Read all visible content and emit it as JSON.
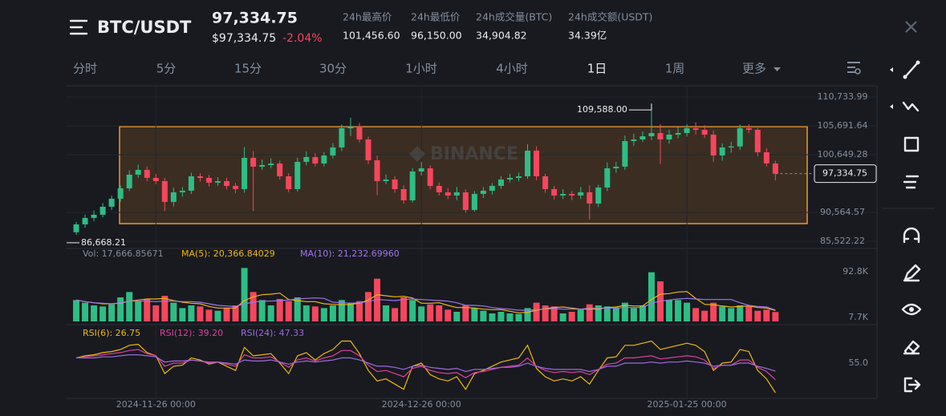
{
  "header": {
    "symbol": "BTC/USDT",
    "price": "97,334.75",
    "price_usd": "$97,334.75",
    "change": "-2.04%",
    "stats": [
      {
        "label": "24h最高价",
        "value": "101,456.60"
      },
      {
        "label": "24h最低价",
        "value": "96,150.00"
      },
      {
        "label": "24h成交量(BTC)",
        "value": "34,904.82"
      },
      {
        "label": "24h成交额(USDT)",
        "value": "34.39亿"
      }
    ]
  },
  "tabs": [
    "分时",
    "5分",
    "15分",
    "30分",
    "1小时",
    "4小时",
    "1日",
    "1周",
    "更多"
  ],
  "active_tab": 6,
  "chart_data": [
    {
      "type": "candlestick",
      "watermark": "BINANCE",
      "up_color": "#2ebd85",
      "down_color": "#f6465d",
      "xlim": [
        -1.18,
        90.39
      ],
      "xticks": [
        {
          "value": 9,
          "label": "2024-11-26 00:00"
        },
        {
          "value": 39,
          "label": "2024-12-26 00:00"
        },
        {
          "value": 69,
          "label": "2025-01-25 00:00"
        }
      ],
      "ylim": [
        84261,
        112555
      ],
      "yticks": [
        {
          "value": 110733.99,
          "label": "110,733.99"
        },
        {
          "value": 105691.64,
          "label": "105,691.64"
        },
        {
          "value": 100649.28,
          "label": "100,649.28"
        },
        {
          "value": 90564.57,
          "label": "90,564.57"
        },
        {
          "value": 85522.22,
          "label": "85,522.22"
        }
      ],
      "annotations": [
        {
          "index": 65,
          "value": 109588,
          "label": "109,588.00"
        },
        {
          "index": 0,
          "value": 86668.21,
          "label": "86,668.21"
        },
        {
          "index": 79,
          "value": 97334.75,
          "label": "97,334.75"
        }
      ],
      "candles": [
        [
          87100,
          88900,
          86668.21,
          88474
        ],
        [
          88474,
          90200,
          87900,
          89594
        ],
        [
          89594,
          90900,
          89000,
          90154
        ],
        [
          90154,
          92200,
          89700,
          91554
        ],
        [
          91554,
          93500,
          91000,
          92954
        ],
        [
          92954,
          95300,
          92400,
          94774
        ],
        [
          94774,
          97900,
          94300,
          97154
        ],
        [
          97154,
          98900,
          96600,
          97994
        ],
        [
          97994,
          98600,
          96000,
          96594
        ],
        [
          96594,
          97300,
          95500,
          96034
        ],
        [
          96034,
          96600,
          90800,
          92394
        ],
        [
          92394,
          94900,
          91600,
          94074
        ],
        [
          94074,
          95000,
          93300,
          94354
        ],
        [
          94354,
          97500,
          93800,
          96874
        ],
        [
          96874,
          97400,
          95900,
          96594
        ],
        [
          96594,
          97100,
          95100,
          95754
        ],
        [
          95754,
          96700,
          95200,
          96034
        ],
        [
          96034,
          96600,
          94600,
          95194
        ],
        [
          95194,
          95700,
          93900,
          94634
        ],
        [
          94634,
          102000,
          94000,
          100094
        ],
        [
          100094,
          101300,
          90800,
          98554
        ],
        [
          98554,
          99800,
          98000,
          98834
        ],
        [
          98834,
          100000,
          98300,
          99114
        ],
        [
          99114,
          99600,
          96300,
          96874
        ],
        [
          96874,
          97400,
          94100,
          94634
        ],
        [
          94634,
          100100,
          94200,
          99394
        ],
        [
          99394,
          101200,
          98800,
          100234
        ],
        [
          100234,
          100900,
          98600,
          99114
        ],
        [
          99114,
          101100,
          98600,
          100514
        ],
        [
          100514,
          102700,
          100000,
          101914
        ],
        [
          101914,
          105900,
          101300,
          105274
        ],
        [
          105274,
          107100,
          103900,
          105554
        ],
        [
          105554,
          106200,
          102800,
          103314
        ],
        [
          103314,
          103800,
          99000,
          99674
        ],
        [
          99674,
          100500,
          93600,
          96034
        ],
        [
          96034,
          97200,
          95500,
          96314
        ],
        [
          96314,
          96900,
          94000,
          94634
        ],
        [
          94634,
          95300,
          92100,
          92674
        ],
        [
          92674,
          98300,
          92300,
          97714
        ],
        [
          97714,
          99400,
          97000,
          98274
        ],
        [
          98274,
          98800,
          94600,
          95194
        ],
        [
          95194,
          95800,
          93500,
          94074
        ],
        [
          94074,
          94800,
          92900,
          93514
        ],
        [
          93514,
          95000,
          92700,
          94074
        ],
        [
          94074,
          94600,
          90500,
          90994
        ],
        [
          90994,
          94300,
          90700,
          93794
        ],
        [
          93794,
          95000,
          93100,
          94354
        ],
        [
          94354,
          95700,
          93700,
          95194
        ],
        [
          95194,
          96900,
          94700,
          96314
        ],
        [
          96314,
          97300,
          95800,
          96594
        ],
        [
          96594,
          97500,
          96000,
          96874
        ],
        [
          96874,
          102500,
          96400,
          101354
        ],
        [
          101354,
          102100,
          96200,
          96874
        ],
        [
          96874,
          97300,
          94000,
          94634
        ],
        [
          94634,
          95200,
          92800,
          93514
        ],
        [
          93514,
          94600,
          92900,
          93794
        ],
        [
          93794,
          94300,
          92700,
          93514
        ],
        [
          93514,
          95000,
          92900,
          94074
        ],
        [
          94074,
          95300,
          89300,
          92114
        ],
        [
          92114,
          95400,
          91500,
          94914
        ],
        [
          94914,
          99300,
          94300,
          98274
        ],
        [
          98274,
          99400,
          97500,
          98554
        ],
        [
          98554,
          104000,
          98000,
          103034
        ],
        [
          103034,
          104300,
          102200,
          103314
        ],
        [
          103314,
          104700,
          102900,
          103874
        ],
        [
          103874,
          109588,
          103200,
          104434
        ],
        [
          104434,
          106000,
          99000,
          103314
        ],
        [
          103314,
          105000,
          102600,
          104154
        ],
        [
          104154,
          105400,
          103500,
          104434
        ],
        [
          104434,
          106000,
          103800,
          105274
        ],
        [
          105274,
          106300,
          104200,
          104994
        ],
        [
          104994,
          105800,
          103600,
          104154
        ],
        [
          104154,
          104900,
          99400,
          100514
        ],
        [
          100514,
          102600,
          99600,
          101914
        ],
        [
          101914,
          102900,
          101000,
          102100
        ],
        [
          102100,
          105900,
          101500,
          105274
        ],
        [
          105274,
          106000,
          104400,
          104994
        ],
        [
          104994,
          105300,
          100400,
          101074
        ],
        [
          101074,
          101800,
          98600,
          99114
        ],
        [
          99114,
          99600,
          96150,
          97334.75
        ]
      ]
    },
    {
      "type": "bar",
      "label": "Vol: 17,666.85671",
      "ylim": [
        0,
        105000
      ],
      "yticks": [
        {
          "value": 92800,
          "label": "92.8K"
        },
        {
          "value": 7700,
          "label": "7.7K"
        }
      ],
      "values": [
        40000,
        35000,
        30000,
        28000,
        32000,
        45000,
        55000,
        38000,
        42000,
        30000,
        48000,
        35000,
        25000,
        30000,
        28000,
        22000,
        20000,
        25000,
        30000,
        100000,
        55000,
        40000,
        30000,
        42000,
        38000,
        45000,
        30000,
        28000,
        25000,
        30000,
        40000,
        35000,
        38000,
        55000,
        80000,
        30000,
        25000,
        45000,
        40000,
        28000,
        32000,
        30000,
        22000,
        18000,
        30000,
        25000,
        20000,
        15000,
        18000,
        15000,
        14000,
        25000,
        35000,
        30000,
        28000,
        15000,
        18000,
        22000,
        32000,
        30000,
        28000,
        25000,
        35000,
        25000,
        30000,
        92000,
        75000,
        40000,
        40000,
        35000,
        25000,
        20000,
        35000,
        28000,
        25000,
        30000,
        28000,
        20000,
        22000,
        17666.85671
      ],
      "series": [
        {
          "name": "MA(5): 20,366.84029",
          "color": "#f0b90b",
          "values": [
            40000,
            37000,
            35000,
            33000,
            33000,
            34000,
            38000,
            40000,
            42000,
            42000,
            43000,
            39000,
            36000,
            34000,
            33000,
            28000,
            25000,
            25000,
            25000,
            39000,
            46000,
            50000,
            51000,
            53000,
            41000,
            39000,
            37000,
            37000,
            33000,
            32000,
            31000,
            32000,
            34000,
            40000,
            50000,
            48000,
            46000,
            47000,
            44000,
            34000,
            34000,
            35000,
            30000,
            26000,
            26000,
            25000,
            23000,
            22000,
            22000,
            19000,
            16000,
            17000,
            21000,
            24000,
            26000,
            27000,
            25000,
            23000,
            23000,
            23000,
            26000,
            27000,
            30000,
            29000,
            29000,
            41000,
            51000,
            52000,
            55000,
            56000,
            43000,
            32000,
            31000,
            29000,
            27000,
            28000,
            29000,
            26000,
            25000,
            20366.84029
          ]
        },
        {
          "name": "MA(10): 21,232.69960",
          "color": "#a474f0",
          "values": [
            40000,
            37000,
            35000,
            34000,
            33000,
            35000,
            38000,
            38000,
            38000,
            37000,
            38000,
            38000,
            37000,
            37000,
            36000,
            33000,
            30000,
            29000,
            28000,
            33000,
            36000,
            38000,
            38000,
            39000,
            40000,
            42000,
            43000,
            44000,
            43000,
            36000,
            35000,
            34000,
            35000,
            37000,
            41000,
            40000,
            39000,
            41000,
            42000,
            41000,
            40000,
            39000,
            38000,
            35000,
            30000,
            30000,
            29000,
            26000,
            24000,
            23000,
            21000,
            21000,
            22000,
            23000,
            24000,
            23000,
            23000,
            23000,
            25000,
            25000,
            25000,
            25000,
            26000,
            26000,
            26000,
            34000,
            38000,
            40000,
            42000,
            43000,
            42000,
            41000,
            41000,
            41000,
            41000,
            35000,
            30000,
            28000,
            27000,
            21232.6996
          ]
        }
      ]
    },
    {
      "type": "line",
      "ylim": [
        21.4,
        89.4
      ],
      "yticks": [
        {
          "value": 55,
          "label": "55.0"
        }
      ],
      "series": [
        {
          "name": "RSI(6): 26.75",
          "color": "#f0b90b",
          "values": [
            60,
            62,
            63,
            65,
            66,
            68,
            72,
            73,
            65,
            62,
            45,
            52,
            53,
            60,
            58,
            54,
            56,
            52,
            48,
            70,
            62,
            63,
            64,
            55,
            45,
            62,
            65,
            58,
            64,
            68,
            76,
            76,
            64,
            48,
            38,
            40,
            35,
            30,
            52,
            55,
            44,
            40,
            38,
            42,
            30,
            45,
            48,
            52,
            56,
            58,
            60,
            72,
            50,
            42,
            38,
            40,
            38,
            42,
            35,
            48,
            60,
            61,
            72,
            72,
            74,
            76,
            68,
            70,
            72,
            74,
            72,
            66,
            48,
            55,
            56,
            68,
            66,
            48,
            40,
            26.75
          ]
        },
        {
          "name": "RSI(12): 39.20",
          "color": "#e0409c",
          "values": [
            60,
            61,
            62,
            63,
            64,
            65,
            67,
            68,
            64,
            62,
            52,
            55,
            55,
            58,
            57,
            55,
            56,
            54,
            52,
            63,
            60,
            60,
            61,
            56,
            51,
            58,
            60,
            57,
            60,
            62,
            67,
            67,
            62,
            53,
            47,
            48,
            45,
            42,
            50,
            52,
            48,
            46,
            45,
            46,
            41,
            46,
            47,
            49,
            51,
            52,
            53,
            60,
            52,
            48,
            46,
            47,
            46,
            47,
            44,
            49,
            54,
            55,
            60,
            60,
            61,
            62,
            59,
            60,
            61,
            62,
            61,
            58,
            50,
            53,
            53,
            58,
            58,
            51,
            47,
            39.2
          ]
        },
        {
          "name": "RSI(24): 47.33",
          "color": "#9c6ade",
          "values": [
            60,
            60,
            60,
            61,
            61,
            62,
            63,
            63,
            62,
            61,
            56,
            57,
            57,
            58,
            57,
            56,
            56,
            55,
            54,
            58,
            57,
            57,
            58,
            56,
            54,
            56,
            57,
            56,
            57,
            58,
            60,
            60,
            58,
            55,
            52,
            52,
            51,
            49,
            52,
            53,
            51,
            50,
            49,
            50,
            47,
            49,
            49,
            50,
            51,
            51,
            52,
            55,
            52,
            50,
            49,
            49,
            49,
            49,
            47,
            49,
            52,
            52,
            55,
            55,
            55,
            56,
            55,
            56,
            56,
            57,
            56,
            55,
            52,
            53,
            53,
            55,
            55,
            52,
            50,
            47.33
          ]
        }
      ]
    }
  ]
}
